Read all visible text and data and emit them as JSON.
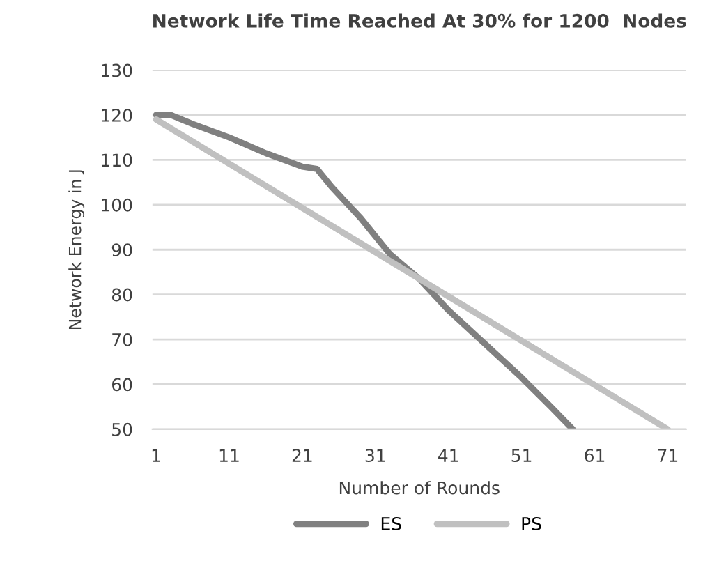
{
  "chart_data": {
    "type": "line",
    "title": "Network Life Time Reached At 30% for 1200  Nodes",
    "xlabel": "Number of Rounds",
    "ylabel": "Network Energy in J",
    "series": [
      {
        "name": "ES",
        "color": "#808080",
        "x": [
          1,
          3,
          6,
          11,
          16,
          21,
          23,
          25,
          29,
          33,
          37,
          41,
          46,
          51,
          55,
          58
        ],
        "values": [
          120,
          120,
          118,
          115,
          111.5,
          108.5,
          108,
          104,
          97,
          89,
          83.5,
          76.5,
          69,
          61.5,
          55,
          50
        ]
      },
      {
        "name": "PS",
        "color": "#c0c0c0",
        "x": [
          1,
          36,
          71
        ],
        "values": [
          119,
          84.5,
          50
        ]
      }
    ],
    "xlim": [
      0.5,
      73.5
    ],
    "xticks": [
      1,
      11,
      21,
      31,
      41,
      51,
      61,
      71
    ],
    "ylim": [
      50,
      130
    ],
    "yticks": [
      50,
      60,
      70,
      80,
      90,
      100,
      110,
      120,
      130
    ],
    "grid": "y",
    "legend": "bottom",
    "marker": "none",
    "line_style": "solid"
  }
}
